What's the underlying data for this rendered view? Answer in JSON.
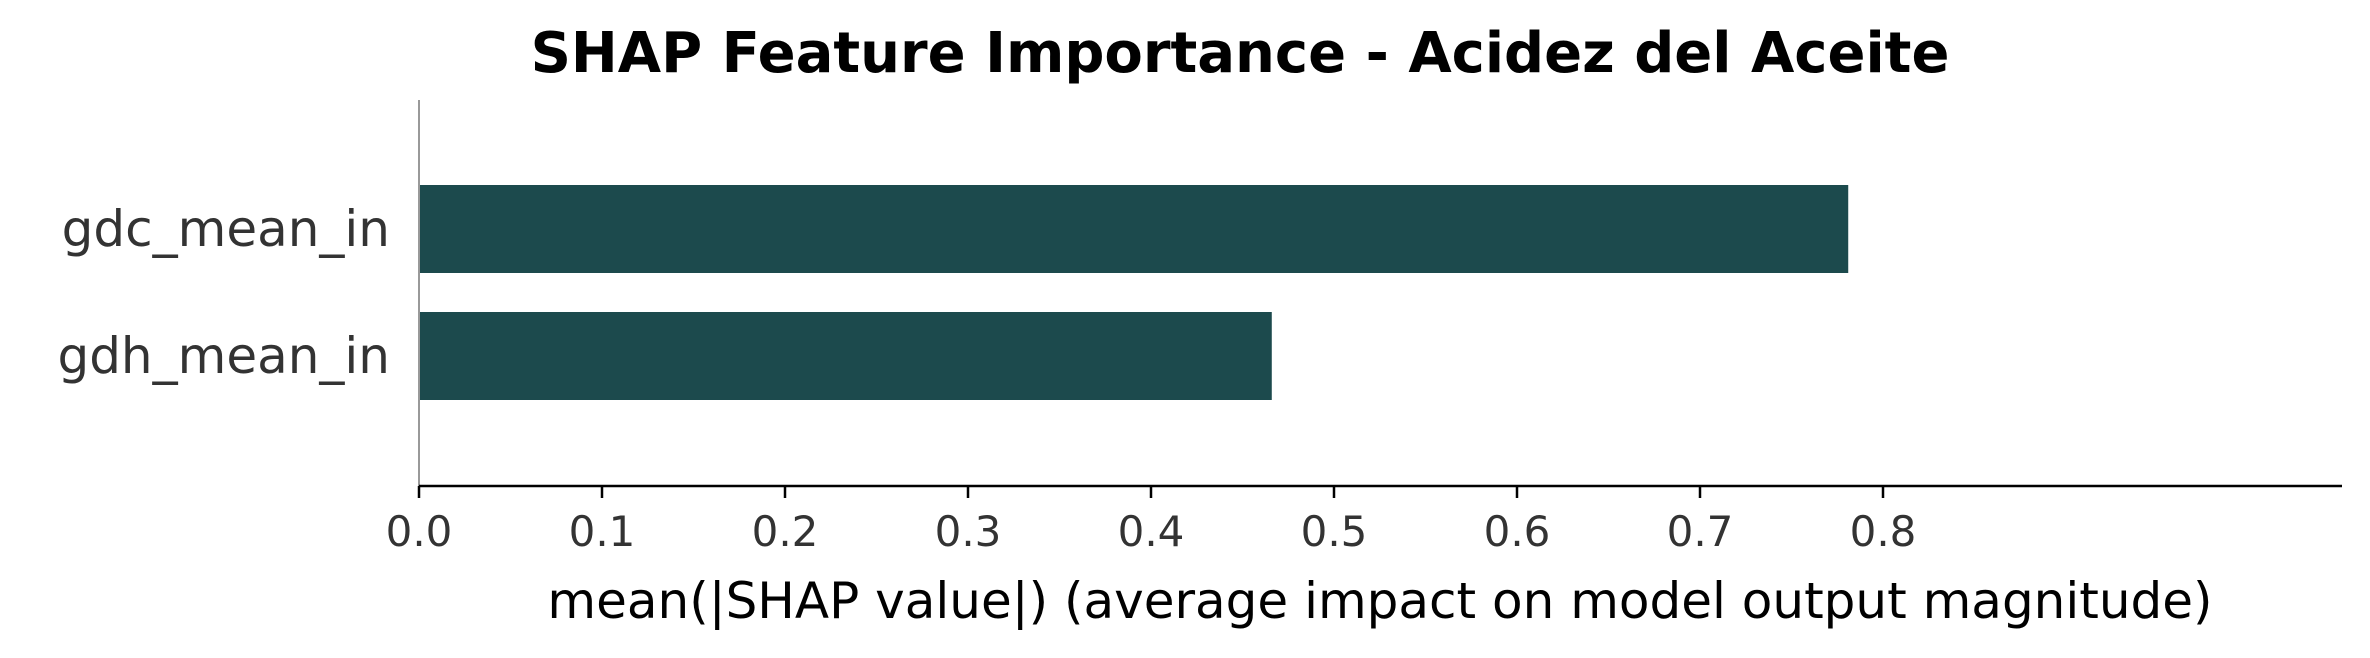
{
  "chart_data": {
    "type": "bar",
    "orientation": "horizontal",
    "title": "SHAP Feature Importance - Acidez del Aceite",
    "xlabel": "mean(|SHAP value|) (average impact on model output magnitude)",
    "ylabel": "",
    "categories": [
      "gdc_mean_in",
      "gdh_mean_in"
    ],
    "values": [
      0.781,
      0.466
    ],
    "xlim": [
      0,
      0.82
    ],
    "xticks": [
      0.0,
      0.1,
      0.2,
      0.3,
      0.4,
      0.5,
      0.6,
      0.7,
      0.8
    ],
    "xtick_labels": [
      "0.0",
      "0.1",
      "0.2",
      "0.3",
      "0.4",
      "0.5",
      "0.6",
      "0.7",
      "0.8"
    ],
    "bar_color": "#1c4a4d",
    "grid": false,
    "legend": "none"
  }
}
